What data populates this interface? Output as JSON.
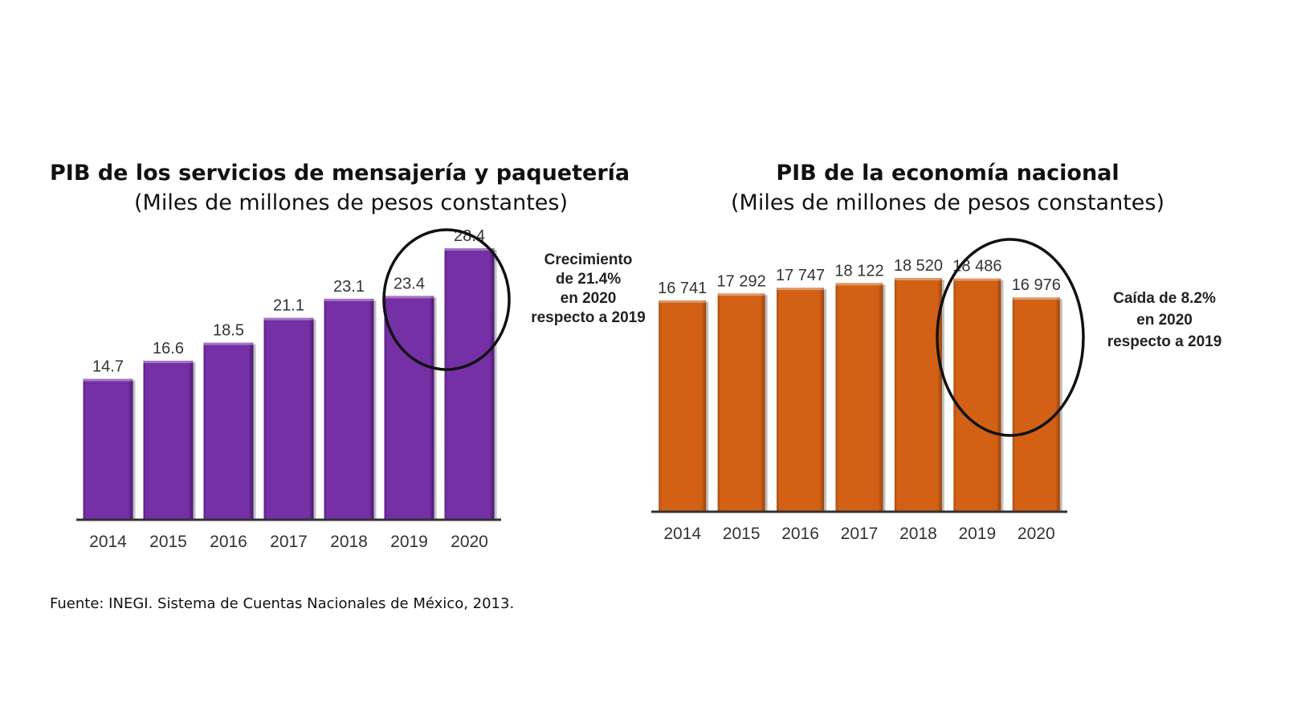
{
  "chart_data": [
    {
      "type": "bar",
      "title": "PIB de los servicios de mensajería y paquetería",
      "subtitle": "(Miles de millones de pesos constantes)",
      "categories": [
        "2014",
        "2015",
        "2016",
        "2017",
        "2018",
        "2019",
        "2020"
      ],
      "values": [
        14.7,
        16.6,
        18.5,
        21.1,
        23.1,
        23.4,
        28.4
      ],
      "labels": [
        "14.7",
        "16.6",
        "18.5",
        "21.1",
        "23.1",
        "23.4",
        "28.4"
      ],
      "color": "#7530a6",
      "xlabel": "",
      "ylabel": "",
      "ylim": [
        0,
        30
      ],
      "grid": false,
      "highlight": [
        "2019",
        "2020"
      ],
      "annotation": "Crecimiento\nde 21.4%\nen 2020\nrespecto a 2019"
    },
    {
      "type": "bar",
      "title": "PIB de la economía nacional",
      "subtitle": "(Miles de millones de pesos constantes)",
      "categories": [
        "2014",
        "2015",
        "2016",
        "2017",
        "2018",
        "2019",
        "2020"
      ],
      "values": [
        16741,
        17292,
        17747,
        18122,
        18520,
        18486,
        16976
      ],
      "labels": [
        "16 741",
        "17 292",
        "17 747",
        "18 122",
        "18 520",
        "18 486",
        "16 976"
      ],
      "color": "#d26116",
      "xlabel": "",
      "ylabel": "",
      "ylim": [
        0,
        19800
      ],
      "grid": false,
      "highlight": [
        "2019",
        "2020"
      ],
      "annotation": "Caída de 8.2%\nen 2020\nrespecto a 2019"
    }
  ],
  "source": "Fuente: INEGI. Sistema de Cuentas Nacionales de México, 2013."
}
